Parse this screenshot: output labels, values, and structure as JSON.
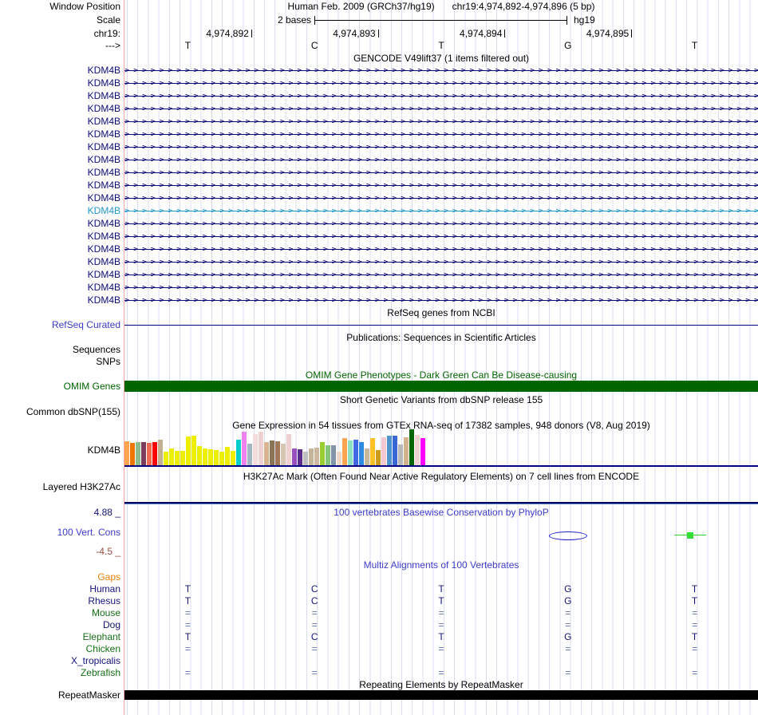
{
  "header": {
    "window_position_label": "Window Position",
    "assembly_title": "Human Feb. 2009 (GRCh37/hg19)",
    "position_range": "chr19:4,974,892-4,974,896 (5 bp)",
    "scale_label": "Scale",
    "scale_value": "2 bases",
    "assembly_short": "hg19",
    "chrom_label": "chr19:",
    "strand_label": "--->",
    "ruler_positions": [
      "4,974,892",
      "4,974,893",
      "4,974,894",
      "4,974,895"
    ],
    "bases": [
      "T",
      "C",
      "T",
      "G",
      "T"
    ]
  },
  "gencode": {
    "title": "GENCODE V49lift37 (1 items filtered out)",
    "transcripts": [
      {
        "label": "KDM4B",
        "color": "#0C0C78"
      },
      {
        "label": "KDM4B",
        "color": "#0C0C78"
      },
      {
        "label": "KDM4B",
        "color": "#0C0C78"
      },
      {
        "label": "KDM4B",
        "color": "#0C0C78"
      },
      {
        "label": "KDM4B",
        "color": "#0C0C78"
      },
      {
        "label": "KDM4B",
        "color": "#0C0C78"
      },
      {
        "label": "KDM4B",
        "color": "#0C0C78"
      },
      {
        "label": "KDM4B",
        "color": "#0C0C78"
      },
      {
        "label": "KDM4B",
        "color": "#0C0C78"
      },
      {
        "label": "KDM4B",
        "color": "#0C0C78"
      },
      {
        "label": "KDM4B",
        "color": "#0C0C78"
      },
      {
        "label": "KDM4B",
        "color": "#2398C8"
      },
      {
        "label": "KDM4B",
        "color": "#0C0C78"
      },
      {
        "label": "KDM4B",
        "color": "#0C0C78"
      },
      {
        "label": "KDM4B",
        "color": "#0C0C78"
      },
      {
        "label": "KDM4B",
        "color": "#0C0C78"
      },
      {
        "label": "KDM4B",
        "color": "#0C0C78"
      },
      {
        "label": "KDM4B",
        "color": "#0C0C78"
      },
      {
        "label": "KDM4B",
        "color": "#0C0C78"
      }
    ]
  },
  "refseq": {
    "title": "RefSeq genes from NCBI",
    "label": "RefSeq Curated"
  },
  "publications": {
    "title": "Publications: Sequences in Scientific Articles",
    "sequences_label": "Sequences",
    "snps_label": "SNPs"
  },
  "omim": {
    "title": "OMIM Gene Phenotypes - Dark Green Can Be Disease-causing",
    "label": "OMIM Genes",
    "color": "#006400"
  },
  "dbsnp": {
    "title": "Short Genetic Variants from dbSNP release 155",
    "label": "Common dbSNP(155)"
  },
  "gtex": {
    "title": "Gene Expression in 54 tissues from GTEx RNA-seq of 17382 samples, 948 donors (V8, Aug 2019)",
    "label": "KDM4B"
  },
  "chart_data": {
    "type": "bar",
    "title": "Gene Expression in 54 tissues from GTEx RNA-seq of 17382 samples, 948 donors (V8, Aug 2019)",
    "xlabel": "",
    "ylabel": "relative expression (no axis shown)",
    "ylim": [
      0,
      45
    ],
    "grid": false,
    "legend": "none (tissue names not displayed at this zoom)",
    "values": [
      30,
      28,
      29,
      29,
      28,
      29,
      32,
      17,
      21,
      18,
      18,
      36,
      37,
      24,
      21,
      20,
      19,
      17,
      23,
      18,
      32,
      42,
      27,
      39,
      42,
      29,
      31,
      30,
      27,
      39,
      21,
      20,
      17,
      21,
      22,
      29,
      25,
      25,
      17,
      34,
      31,
      32,
      29,
      21,
      34,
      19,
      35,
      37,
      37,
      26,
      35,
      45,
      38,
      34
    ],
    "colors": [
      "#FFA54F",
      "#EE7600",
      "#8FBC8F",
      "#7D3C5E",
      "#EE6A50",
      "#FF0000",
      "#C3B091",
      "#EEEE00",
      "#EEEE00",
      "#EEEE00",
      "#EEEE00",
      "#EEEE00",
      "#EEEE00",
      "#EEEE00",
      "#EEEE00",
      "#EEEE00",
      "#EEEE00",
      "#EEEE00",
      "#EEEE00",
      "#EEEE00",
      "#00CDCD",
      "#EE82EE",
      "#A4B6C4",
      "#F2DCDC",
      "#F0D1D1",
      "#D9B48F",
      "#8B7355",
      "#A0785A",
      "#D6C6B2",
      "#F0D1D1",
      "#9A4FC0",
      "#5C2E8A",
      "#BFBFBF",
      "#C4B49A",
      "#CDB79E",
      "#9ACD32",
      "#86C67C",
      "#8294A8",
      "#EFD7C9",
      "#FFA54F",
      "#8FE0C0",
      "#4169E1",
      "#2E8BE0",
      "#C8B89B",
      "#FFC125",
      "#CD9B1D",
      "#F4C8D0",
      "#4F94CD",
      "#3A66D6",
      "#B8B8B8",
      "#D2B48C",
      "#006400",
      "#F0D1D1",
      "#FF00FF"
    ]
  },
  "h3k27ac": {
    "title": "H3K27Ac Mark (Often Found Near Active Regulatory Elements) on 7 cell lines from ENCODE",
    "label": "Layered H3K27Ac"
  },
  "phylop": {
    "title": "100 vertebrates Basewise Conservation by PhyloP",
    "label": "100 Vert. Cons",
    "max_label": "4.88 _",
    "min_label": "-4.5 _"
  },
  "multiz": {
    "title": "Multiz Alignments of 100 Vertebrates",
    "rows": [
      {
        "label": "Gaps",
        "color": "#E8820E",
        "bases": [
          "",
          "",
          "",
          "",
          ""
        ]
      },
      {
        "label": "Human",
        "color": "#14147A",
        "bases": [
          "T",
          "C",
          "T",
          "G",
          "T"
        ]
      },
      {
        "label": "Rhesus",
        "color": "#14147A",
        "bases": [
          "T",
          "C",
          "T",
          "G",
          "T"
        ]
      },
      {
        "label": "Mouse",
        "color": "#157015",
        "bases": [
          "=",
          "=",
          "=",
          "=",
          "="
        ]
      },
      {
        "label": "Dog",
        "color": "#14147A",
        "bases": [
          "=",
          "=",
          "=",
          "=",
          "="
        ]
      },
      {
        "label": "Elephant",
        "color": "#157015",
        "bases": [
          "T",
          "C",
          "T",
          "G",
          "T"
        ]
      },
      {
        "label": "Chicken",
        "color": "#157015",
        "bases": [
          "=",
          "=",
          "=",
          "=",
          "="
        ]
      },
      {
        "label": "X_tropicalis",
        "color": "#14147A",
        "bases": [
          "",
          "",
          "",
          "",
          ""
        ]
      },
      {
        "label": "Zebrafish",
        "color": "#157015",
        "bases": [
          "=",
          "=",
          "=",
          "=",
          "="
        ]
      }
    ]
  },
  "repeatmasker": {
    "title": "Repeating Elements by RepeatMasker",
    "label": "RepeatMasker"
  },
  "colors": {
    "gene_dark_blue": "#0C0C78",
    "gene_light_blue": "#2398C8",
    "guideline": "#DCDCF0",
    "label_divider_pink": "#F5ABAB",
    "omim_green": "#006400",
    "track_title_blue": "#3C3CC8",
    "phylop_min_maroon": "#9B4E42",
    "baseline_navy": "#000080",
    "repeat_black": "#000000"
  }
}
